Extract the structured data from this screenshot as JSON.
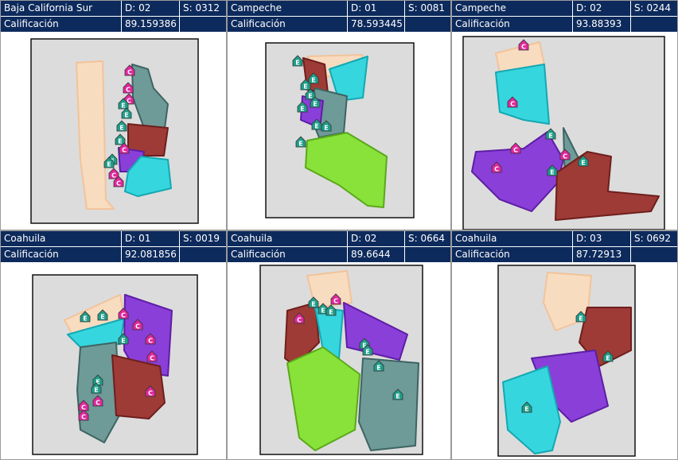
{
  "panels": [
    {
      "state": "Baja California Sur",
      "district": "D: 02",
      "section": "S: 0312",
      "score_label": "Calificación",
      "score": "89.159386",
      "markers": [
        "C",
        "C",
        "C",
        "E",
        "E",
        "E",
        "E",
        "C",
        "E",
        "E",
        "C",
        "C"
      ]
    },
    {
      "state": "Campeche",
      "district": "D: 01",
      "section": "S: 0081",
      "score_label": "Calificación",
      "score": "78.593445",
      "markers": [
        "E",
        "E",
        "E",
        "E",
        "E",
        "E",
        "E",
        "E",
        "E"
      ]
    },
    {
      "state": "Campeche",
      "district": "D: 02",
      "section": "S: 0244",
      "score_label": "Calificación",
      "score": "93.88393",
      "markers": [
        "C",
        "C",
        "C",
        "E",
        "C",
        "C",
        "E",
        "E"
      ]
    },
    {
      "state": "Coahuila",
      "district": "D: 01",
      "section": "S: 0019",
      "score_label": "Calificación",
      "score": "92.081856",
      "markers": [
        "E",
        "E",
        "C",
        "E",
        "C",
        "C",
        "C",
        "E",
        "E",
        "C",
        "C",
        "C",
        "C"
      ]
    },
    {
      "state": "Coahuila",
      "district": "D: 02",
      "section": "S: 0664",
      "score_label": "Calificación",
      "score": "89.6644",
      "markers": [
        "C",
        "E",
        "E",
        "C",
        "E",
        "E",
        "E",
        "E",
        "E"
      ]
    },
    {
      "state": "Coahuila",
      "district": "D: 03",
      "section": "S: 0692",
      "score_label": "Calificación",
      "score": "87.72913",
      "markers": [
        "E",
        "E",
        "E"
      ]
    }
  ]
}
